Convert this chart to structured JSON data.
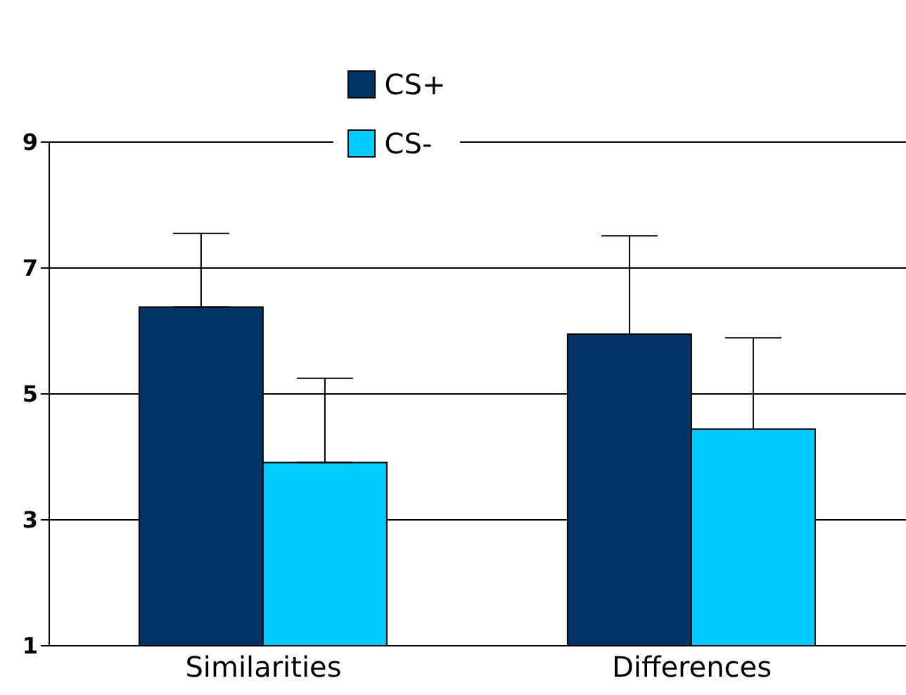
{
  "chart_data": {
    "type": "bar",
    "categories": [
      "Similarities",
      "Differences"
    ],
    "series": [
      {
        "name": "CS+",
        "color": "#003366",
        "values": [
          6.38,
          5.95
        ],
        "errors": [
          [
            6.38,
            7.55
          ],
          [
            5.95,
            7.51
          ]
        ]
      },
      {
        "name": "CS-",
        "color": "#00ccff",
        "values": [
          3.91,
          4.44
        ],
        "errors": [
          [
            3.91,
            5.25
          ],
          [
            4.44,
            5.89
          ]
        ]
      }
    ],
    "ylim": [
      1,
      9
    ],
    "yticks": [
      1,
      3,
      5,
      7,
      9
    ],
    "grid": "y",
    "legend": "top"
  }
}
